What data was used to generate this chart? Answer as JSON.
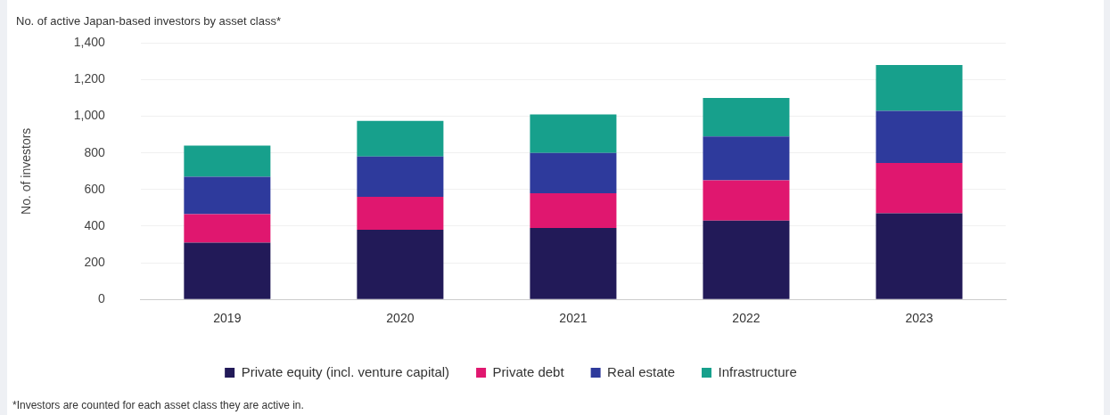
{
  "chart_data": {
    "type": "bar",
    "stacked": true,
    "title": "No. of active Japan-based investors by asset class*",
    "ylabel": "No. of investors",
    "categories": [
      "2019",
      "2020",
      "2021",
      "2022",
      "2023"
    ],
    "series": [
      {
        "name": "Private equity (incl. venture capital)",
        "color": "#221a58",
        "values": [
          310,
          380,
          390,
          430,
          470
        ]
      },
      {
        "name": "Private debt",
        "color": "#e0176f",
        "values": [
          155,
          180,
          190,
          220,
          275
        ]
      },
      {
        "name": "Real estate",
        "color": "#2e3a9c",
        "values": [
          205,
          220,
          220,
          240,
          285
        ]
      },
      {
        "name": "Infrastructure",
        "color": "#17a08c",
        "values": [
          170,
          195,
          210,
          210,
          250
        ]
      }
    ],
    "ylim": [
      0,
      1400
    ],
    "yticks": [
      0,
      200,
      400,
      600,
      800,
      {
        "value": 1000,
        "label": "1,000"
      },
      {
        "value": 1200,
        "label": "1,200"
      },
      {
        "value": 1400,
        "label": "1,400"
      }
    ],
    "grid": "y",
    "legend": "bottom",
    "annotations": [
      "*Investors are counted for each asset class they are active in."
    ]
  }
}
